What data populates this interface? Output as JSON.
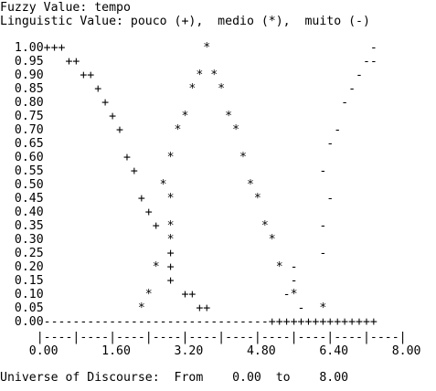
{
  "header": {
    "fuzzy_value_line": "Fuzzy Value: tempo",
    "linguistic_value_line": "Linguistic Value: pouco (+),  medio (*),  muito (-)"
  },
  "plot": {
    "rows": [
      "  1.00+++                   *                      -",
      "  0.95   ++                                       --",
      "  0.90     ++              * *                   -",
      "  0.85       +            *   *                 -",
      "  0.80        +                                -",
      "  0.75         +         *     *",
      "  0.70          +       *       *             -",
      "  0.65                                       -",
      "  0.60           +     *         *",
      "  0.55            +                         -",
      "  0.50                *           *",
      "  0.45             +   *           *         -",
      "  0.40              +",
      "  0.35               + *            *       -",
      "  0.30                 *             *",
      "  0.25                 +                    -",
      "  0.20               * +              * -",
      "  0.15                 +                -",
      "  0.10              *    ++            -*",
      "  0.05             *       ++            -  *",
      "  0.00-------------------------------+++++++++++++++"
    ],
    "axis_ticks_line": "     |----|----|----|----|----|----|----|----|----|----|",
    "axis_labels_line": "    0.00      1.60      3.20      4.80      6.40      8.00"
  },
  "footer": {
    "universe_line": "Universe of Discourse:  From    0.00  to    8.00"
  }
}
